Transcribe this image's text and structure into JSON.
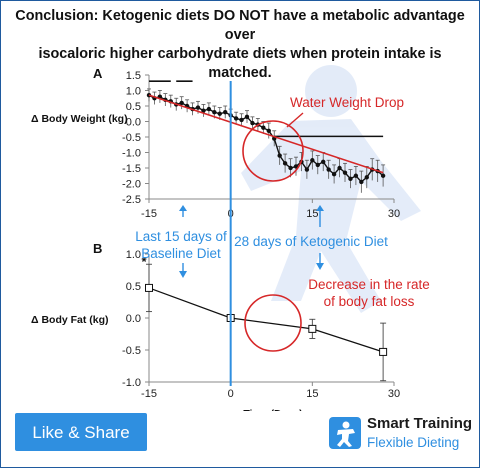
{
  "headline": {
    "line1": "Conclusion: Ketogenic diets DO NOT have a metabolic advantage over",
    "line2": "isocaloric higher carbohydrate diets when protein intake is matched."
  },
  "colors": {
    "baseline_blue": "#2f8fe0",
    "annotation_red": "#d62728",
    "series_black": "#111111",
    "button_blue": "#2f8fe0"
  },
  "annotations": {
    "baseline": [
      "Last 15 days of",
      "Baseline Diet"
    ],
    "keto": "28 days of Ketogenic Diet",
    "water": "Water Weight Drop",
    "fat_loss": [
      "Decrease in the rate",
      "of body fat loss"
    ]
  },
  "chart_data": [
    {
      "panel": "A",
      "type": "line",
      "ylabel": "Δ Body Weight (kg)",
      "xlim": [
        -15,
        30
      ],
      "ylim": [
        -2.5,
        1.5
      ],
      "xticks": [
        "-15",
        "0",
        "15",
        "30"
      ],
      "yticks": [
        "1.5",
        "1.0",
        "0.5",
        "0.0",
        "-0.5",
        "-1.0",
        "-1.5",
        "-2.0",
        "-2.5"
      ],
      "series": [
        {
          "x": [
            -15,
            -14,
            -13,
            -12,
            -11,
            -10,
            -9,
            -8,
            -7,
            -6,
            -5,
            -4,
            -3,
            -2,
            -1,
            0,
            1,
            2,
            3,
            4,
            5,
            6,
            7,
            8,
            9,
            10,
            11,
            12,
            13,
            14,
            15,
            16,
            17,
            18,
            19,
            20,
            21,
            22,
            23,
            24,
            25,
            26,
            27,
            28
          ],
          "y": [
            0.85,
            0.75,
            0.8,
            0.7,
            0.65,
            0.55,
            0.6,
            0.5,
            0.4,
            0.45,
            0.35,
            0.4,
            0.3,
            0.25,
            0.3,
            0.2,
            0.1,
            0.05,
            0.15,
            -0.05,
            -0.1,
            -0.2,
            -0.3,
            -0.55,
            -1.1,
            -1.35,
            -1.5,
            -1.45,
            -1.3,
            -1.55,
            -1.25,
            -1.4,
            -1.3,
            -1.55,
            -1.7,
            -1.5,
            -1.65,
            -1.85,
            -1.75,
            -1.95,
            -1.8,
            -1.55,
            -1.6,
            -1.75
          ],
          "err": [
            0.2,
            0.2,
            0.2,
            0.2,
            0.2,
            0.2,
            0.2,
            0.2,
            0.2,
            0.2,
            0.2,
            0.2,
            0.2,
            0.2,
            0.2,
            0.2,
            0.2,
            0.2,
            0.2,
            0.2,
            0.2,
            0.2,
            0.25,
            0.25,
            0.3,
            0.3,
            0.3,
            0.3,
            0.3,
            0.3,
            0.3,
            0.3,
            0.3,
            0.3,
            0.3,
            0.3,
            0.3,
            0.3,
            0.3,
            0.35,
            0.35,
            0.35,
            0.35,
            0.35
          ]
        }
      ],
      "trend": {
        "x": [
          -15,
          28
        ],
        "y": [
          0.85,
          -1.65
        ]
      },
      "significance_bars": [
        {
          "x0": -15,
          "x1": -11,
          "y": 1.3
        },
        {
          "x0": -10,
          "x1": -7,
          "y": 1.3
        },
        {
          "x0": 8,
          "x1": 28,
          "y": -0.48
        }
      ]
    },
    {
      "panel": "B",
      "type": "line",
      "xlabel": "Time (Days)",
      "ylabel": "Δ Body Fat (kg)",
      "xlim": [
        -15,
        30
      ],
      "ylim": [
        -1.0,
        1.0
      ],
      "xticks": [
        "-15",
        "0",
        "15",
        "30"
      ],
      "yticks": [
        "1.0",
        "0.5",
        "0.0",
        "-0.5",
        "-1.0"
      ],
      "series": [
        {
          "x": [
            -15,
            0,
            15,
            28
          ],
          "y": [
            0.47,
            0.0,
            -0.17,
            -0.53
          ],
          "err": [
            0.37,
            0.02,
            0.15,
            0.45
          ]
        }
      ],
      "significance_marker": "*"
    }
  ],
  "button": {
    "label": "Like & Share"
  },
  "brand": {
    "line1": "Smart Training",
    "line2": "Flexible Dieting",
    "icon": "flexing-figure-icon"
  }
}
